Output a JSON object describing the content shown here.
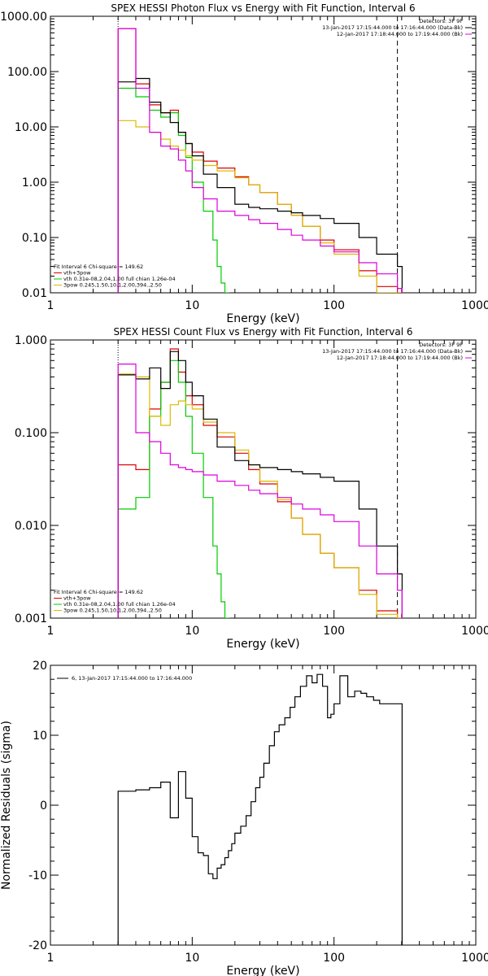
{
  "chart_data": [
    {
      "type": "line",
      "title": "SPEX HESSI Photon Flux vs Energy with Fit Function, Interval 6",
      "xlabel": "Energy (keV)",
      "ylabel": "",
      "xscale": "log",
      "yscale": "log",
      "xlim": [
        1,
        1000
      ],
      "ylim": [
        0.01,
        1000
      ],
      "x_tick_labels": [
        "1",
        "10",
        "100",
        "1000"
      ],
      "y_tick_labels": [
        "0.01",
        "0.10",
        "1.00",
        "10.00",
        "100.00",
        "1000.00"
      ],
      "y_ticks": [
        0.01,
        0.1,
        1,
        10,
        100,
        1000
      ],
      "legend_top_right": [
        "Detectors: 3F 9F",
        "13-Jan-2017 17:15:44.000 to 17:16:44.000 (Data-Bk)",
        "12-Jan-2017 17:18:44.000 to 17:19:44.000 (Bk)"
      ],
      "legend_bottom_left": [
        "Fit Interval  6    Chi-square = 149.62",
        "vth+3pow",
        "vth 0.31e-08,2.04,1.00  full chian 1.26e-04",
        "3pow 0.245,1.50,10.1,2.00,394.,2.50"
      ],
      "vline_dotted_x": 3,
      "vline_dashed_x": 280,
      "series": [
        {
          "name": "vth+3pow",
          "color": "#dd0000",
          "x": [
            3,
            4,
            5,
            6,
            7,
            8,
            9,
            10,
            12,
            15,
            20,
            25,
            30,
            40,
            50,
            60,
            80,
            100,
            150,
            200,
            280
          ],
          "values": [
            600,
            60,
            25,
            18,
            20,
            8,
            5,
            3.5,
            2.4,
            1.8,
            1.25,
            0.9,
            0.65,
            0.4,
            0.25,
            0.16,
            0.09,
            0.06,
            0.025,
            0.013,
            0.01
          ]
        },
        {
          "name": "vth",
          "color": "#00cc00",
          "x": [
            3,
            4,
            5,
            6,
            7,
            8,
            9,
            10,
            12,
            14,
            15,
            16,
            17
          ],
          "values": [
            50,
            35,
            20,
            15,
            18,
            7,
            2.8,
            1,
            0.3,
            0.09,
            0.03,
            0.015,
            0.01
          ]
        },
        {
          "name": "3pow",
          "color": "#ddbb00",
          "x": [
            3,
            4,
            5,
            6,
            7,
            8,
            9,
            10,
            12,
            15,
            20,
            25,
            30,
            40,
            50,
            60,
            80,
            100,
            150,
            200,
            280
          ],
          "values": [
            13,
            10,
            8,
            6,
            4.5,
            3.8,
            3,
            2.5,
            2,
            1.6,
            1.2,
            0.9,
            0.65,
            0.4,
            0.25,
            0.16,
            0.08,
            0.05,
            0.02,
            0.01,
            0.01
          ]
        },
        {
          "name": "Data-Bk",
          "color": "#000000",
          "x": [
            3,
            4,
            5,
            6,
            7,
            8,
            9,
            10,
            12,
            15,
            20,
            25,
            30,
            40,
            50,
            60,
            80,
            100,
            150,
            200,
            280
          ],
          "values": [
            65,
            75,
            28,
            18,
            12,
            8,
            5,
            3,
            1.4,
            0.8,
            0.4,
            0.35,
            0.33,
            0.3,
            0.28,
            0.25,
            0.22,
            0.18,
            0.1,
            0.05,
            0.03
          ]
        },
        {
          "name": "Bk",
          "color": "#dd00dd",
          "x": [
            3,
            4,
            5,
            6,
            7,
            8,
            9,
            10,
            12,
            15,
            20,
            25,
            30,
            40,
            50,
            60,
            80,
            100,
            150,
            200,
            280
          ],
          "values": [
            600,
            50,
            8,
            4.5,
            4,
            2.5,
            1.6,
            0.8,
            0.5,
            0.3,
            0.25,
            0.21,
            0.18,
            0.14,
            0.11,
            0.09,
            0.07,
            0.055,
            0.035,
            0.022,
            0.012
          ]
        }
      ]
    },
    {
      "type": "line",
      "title": "SPEX HESSI Count Flux vs Energy with Fit Function, Interval 6",
      "xlabel": "Energy (keV)",
      "ylabel": "",
      "xscale": "log",
      "yscale": "log",
      "xlim": [
        1,
        1000
      ],
      "ylim": [
        0.001,
        1
      ],
      "x_tick_labels": [
        "1",
        "10",
        "100",
        "1000"
      ],
      "y_tick_labels": [
        "0.001",
        "0.010",
        "0.100",
        "1.000"
      ],
      "y_ticks": [
        0.001,
        0.01,
        0.1,
        1
      ],
      "legend_top_right": [
        "Detectors: 3F 9F",
        "13-Jan-2017 17:15:44.000 to 17:16:44.000 (Data-Bk)",
        "12-Jan-2017 17:18:44.000 to 17:19:44.000 (Bk)"
      ],
      "legend_bottom_left": [
        "Fit Interval  6    Chi-square = 149.62",
        "vth+3pow",
        "vth 0.31e-08,2.04,1.00  full chian 1.26e-04",
        "3pow 0.245,1.50,10.1,2.00,394.,2.50"
      ],
      "vline_dotted_x": 3,
      "vline_dashed_x": 280,
      "series": [
        {
          "name": "vth+3pow",
          "color": "#dd0000",
          "x": [
            3,
            4,
            5,
            6,
            7,
            8,
            9,
            10,
            12,
            15,
            20,
            25,
            30,
            40,
            50,
            60,
            80,
            100,
            150,
            200,
            280
          ],
          "values": [
            0.045,
            0.04,
            0.18,
            0.35,
            0.8,
            0.45,
            0.25,
            0.2,
            0.12,
            0.09,
            0.06,
            0.04,
            0.028,
            0.018,
            0.012,
            0.008,
            0.005,
            0.0035,
            0.002,
            0.0012,
            0.001
          ]
        },
        {
          "name": "vth",
          "color": "#00cc00",
          "x": [
            3,
            4,
            5,
            6,
            7,
            8,
            9,
            10,
            12,
            14,
            15,
            16,
            17
          ],
          "values": [
            0.015,
            0.02,
            0.15,
            0.35,
            0.6,
            0.35,
            0.15,
            0.06,
            0.02,
            0.006,
            0.003,
            0.0015,
            0.001
          ]
        },
        {
          "name": "3pow",
          "color": "#ddbb00",
          "x": [
            3,
            4,
            5,
            6,
            7,
            8,
            9,
            10,
            12,
            15,
            20,
            25,
            30,
            40,
            50,
            60,
            80,
            100,
            150,
            200,
            280
          ],
          "values": [
            0.43,
            0.4,
            0.15,
            0.12,
            0.2,
            0.22,
            0.2,
            0.18,
            0.13,
            0.1,
            0.065,
            0.045,
            0.03,
            0.019,
            0.012,
            0.008,
            0.005,
            0.0035,
            0.0018,
            0.0011,
            0.001
          ]
        },
        {
          "name": "Data-Bk",
          "color": "#000000",
          "x": [
            3,
            4,
            5,
            6,
            7,
            8,
            9,
            10,
            12,
            15,
            20,
            25,
            30,
            40,
            50,
            60,
            80,
            100,
            150,
            200,
            280
          ],
          "values": [
            0.42,
            0.38,
            0.5,
            0.3,
            0.75,
            0.6,
            0.35,
            0.25,
            0.14,
            0.07,
            0.05,
            0.045,
            0.042,
            0.04,
            0.038,
            0.036,
            0.033,
            0.03,
            0.015,
            0.006,
            0.003
          ]
        },
        {
          "name": "Bk",
          "color": "#dd00dd",
          "x": [
            3,
            4,
            5,
            6,
            7,
            8,
            9,
            10,
            12,
            15,
            20,
            25,
            30,
            40,
            50,
            60,
            80,
            100,
            150,
            200,
            280
          ],
          "values": [
            0.55,
            0.1,
            0.08,
            0.06,
            0.045,
            0.042,
            0.04,
            0.038,
            0.035,
            0.03,
            0.027,
            0.024,
            0.022,
            0.02,
            0.017,
            0.015,
            0.013,
            0.011,
            0.006,
            0.003,
            0.002
          ]
        }
      ]
    },
    {
      "type": "line",
      "title": "",
      "xlabel": "Energy (keV)",
      "ylabel": "Normalized Residuals (sigma)",
      "xscale": "log",
      "yscale": "linear",
      "xlim": [
        1,
        1000
      ],
      "ylim": [
        -20,
        20
      ],
      "x_tick_labels": [
        "1",
        "10",
        "100",
        "1000"
      ],
      "y_tick_labels": [
        "-20",
        "-10",
        "0",
        "10",
        "20"
      ],
      "y_ticks": [
        -20,
        -10,
        0,
        10,
        20
      ],
      "legend": "6, 13-Jan-2017 17:15:44.000 to 17:16:44.000",
      "series": [
        {
          "name": "6, 13-Jan-2017 17:15:44.000 to 17:16:44.000",
          "color": "#000000",
          "x": [
            3,
            4,
            5,
            6,
            7,
            8,
            9,
            10,
            11,
            12,
            13,
            14,
            15,
            16,
            17,
            18,
            19,
            20,
            22,
            24,
            26,
            28,
            30,
            32,
            35,
            38,
            41,
            45,
            49,
            53,
            58,
            64,
            70,
            76,
            83,
            90,
            95,
            100,
            110,
            125,
            140,
            155,
            170,
            190,
            210,
            240,
            260,
            280
          ],
          "values": [
            2,
            2.2,
            2.5,
            3.3,
            -1.8,
            4.8,
            1.0,
            -4.5,
            -6.8,
            -7.2,
            -9.8,
            -10.5,
            -9.0,
            -8.5,
            -7.5,
            -6.5,
            -5.5,
            -4.0,
            -3.0,
            -1.5,
            0.5,
            2.5,
            4.0,
            6.0,
            8.5,
            10.5,
            11.5,
            12.5,
            14.0,
            15.5,
            17.0,
            18.5,
            17.5,
            18.7,
            17.0,
            12.5,
            13.0,
            14.5,
            18.5,
            15.5,
            16.3,
            16.0,
            15.5,
            15.0,
            14.5,
            14.5,
            14.5,
            14.5
          ]
        }
      ]
    }
  ]
}
